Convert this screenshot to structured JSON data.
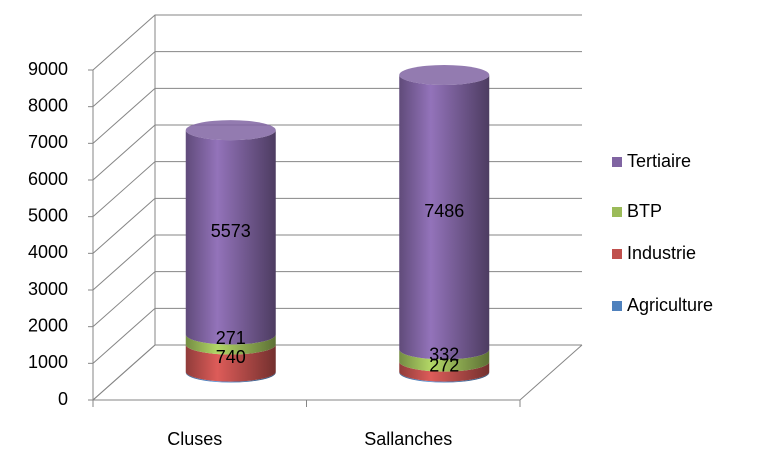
{
  "chart_data": {
    "type": "bar3d_stacked_cylinder",
    "categories": [
      "Cluses",
      "Sallanches"
    ],
    "series": [
      {
        "name": "Agriculture",
        "color": "#4f81bd",
        "values": [
          25,
          25
        ],
        "data_labels": false
      },
      {
        "name": "Industrie",
        "color": "#c0504d",
        "values": [
          740,
          272
        ],
        "data_labels": true
      },
      {
        "name": "BTP",
        "color": "#9bbb59",
        "values": [
          271,
          332
        ],
        "data_labels": true
      },
      {
        "name": "Tertiaire",
        "color": "#8064a2",
        "values": [
          5573,
          7486
        ],
        "data_labels": true
      }
    ],
    "ylim": [
      0,
      9000
    ],
    "yticks": [
      0,
      1000,
      2000,
      3000,
      4000,
      5000,
      6000,
      7000,
      8000,
      9000
    ],
    "grid": true,
    "legend": "right"
  }
}
